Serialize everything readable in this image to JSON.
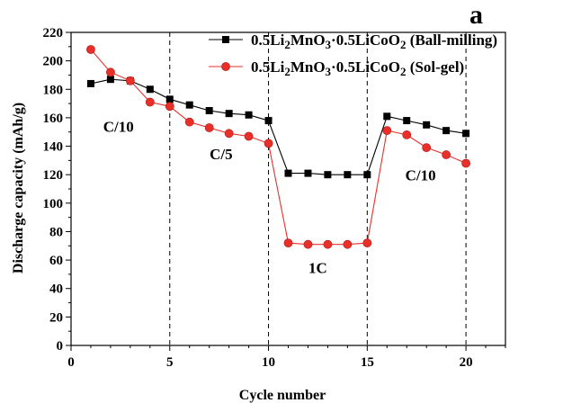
{
  "chart_data": {
    "type": "line",
    "panel_label": "a",
    "xlabel": "Cycle number",
    "ylabel": "Discharge capacity (mAh/g)",
    "xlim": [
      0,
      22
    ],
    "ylim": [
      0,
      220
    ],
    "xticks": [
      0,
      5,
      10,
      15,
      20
    ],
    "yticks": [
      0,
      20,
      40,
      60,
      80,
      100,
      120,
      140,
      160,
      180,
      200,
      220
    ],
    "grid": false,
    "legend_position": "top-right",
    "dividers_x": [
      5,
      10,
      15,
      20
    ],
    "rate_labels": [
      {
        "text": "C/10",
        "x": 2.4,
        "y": 150
      },
      {
        "text": "C/5",
        "x": 7.6,
        "y": 131
      },
      {
        "text": "1C",
        "x": 12.5,
        "y": 51
      },
      {
        "text": "C/10",
        "x": 17.7,
        "y": 116
      }
    ],
    "series": [
      {
        "name_parts": [
          {
            "t": "0.5Li",
            "sub": false
          },
          {
            "t": "2",
            "sub": true
          },
          {
            "t": "MnO",
            "sub": false
          },
          {
            "t": "3",
            "sub": true
          },
          {
            "t": "·0.5LiCoO",
            "sub": false
          },
          {
            "t": "2",
            "sub": true
          },
          {
            "t": " (Ball-milling)",
            "sub": false
          }
        ],
        "color": "#000000",
        "marker": "square",
        "x": [
          1,
          2,
          3,
          4,
          5,
          6,
          7,
          8,
          9,
          10,
          11,
          12,
          13,
          14,
          15,
          16,
          17,
          18,
          19,
          20
        ],
        "y": [
          184,
          187,
          186,
          180,
          173,
          169,
          165,
          163,
          162,
          158,
          121,
          121,
          120,
          120,
          120,
          161,
          158,
          155,
          151,
          149
        ]
      },
      {
        "name_parts": [
          {
            "t": "0.5Li",
            "sub": false
          },
          {
            "t": "2",
            "sub": true
          },
          {
            "t": "MnO",
            "sub": false
          },
          {
            "t": "3",
            "sub": true
          },
          {
            "t": "·0.5LiCoO",
            "sub": false
          },
          {
            "t": "2",
            "sub": true
          },
          {
            "t": " (Sol-gel)",
            "sub": false
          }
        ],
        "color": "#e8302a",
        "marker": "circle",
        "x": [
          1,
          2,
          3,
          4,
          5,
          6,
          7,
          8,
          9,
          10,
          11,
          12,
          13,
          14,
          15,
          16,
          17,
          18,
          19,
          20
        ],
        "y": [
          208,
          192,
          186,
          171,
          168,
          157,
          153,
          149,
          147,
          142,
          72,
          71,
          71,
          71,
          72,
          151,
          148,
          139,
          134,
          128
        ]
      }
    ]
  }
}
